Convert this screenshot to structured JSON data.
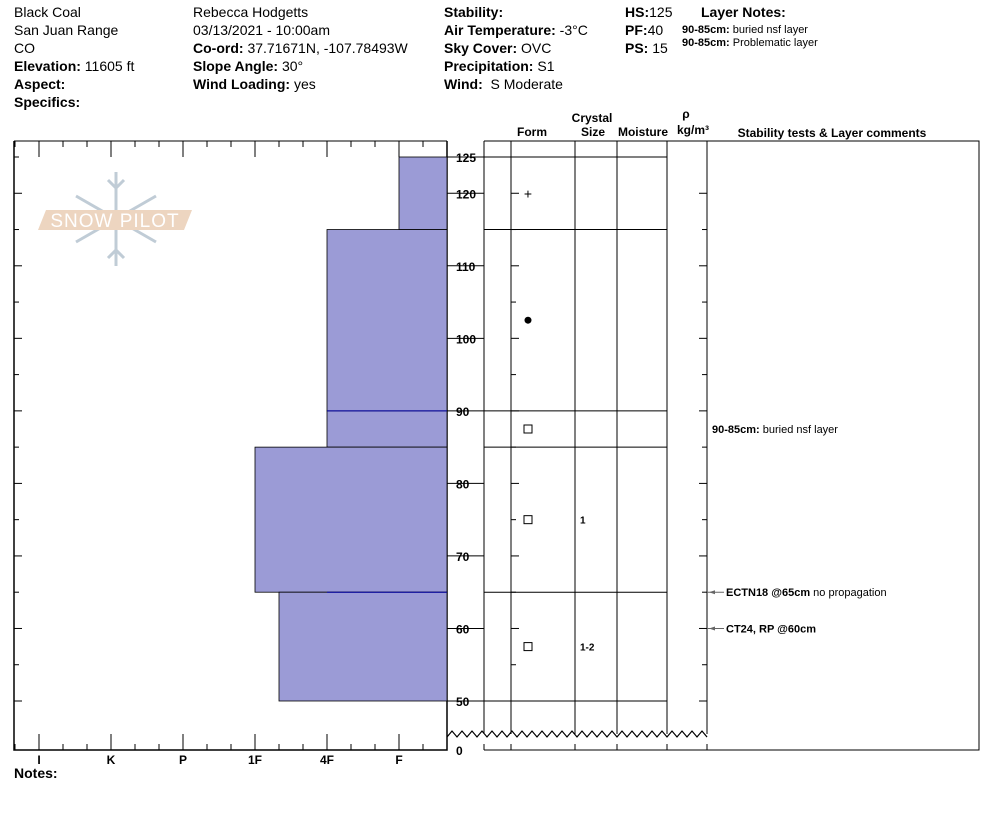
{
  "header": {
    "location": "Black Coal",
    "range": "San Juan Range",
    "state": "CO",
    "elevation_label": "Elevation:",
    "elevation": "11605 ft",
    "aspect_label": "Aspect:",
    "aspect": "",
    "specifics_label": "Specifics:",
    "observer": "Rebecca Hodgetts",
    "datetime": "03/13/2021 - 10:00am",
    "coord_label": "Co-ord:",
    "coord": "37.71671N, -107.78493W",
    "slope_label": "Slope Angle:",
    "slope": "30°",
    "wind_loading_label": "Wind Loading:",
    "wind_loading": "yes",
    "stability_label": "Stability:",
    "stability": "",
    "air_temp_label": "Air Temperature:",
    "air_temp": "-3°C",
    "sky_label": "Sky Cover:",
    "sky": "OVC",
    "precip_label": "Precipitation:",
    "precip": "S1",
    "wind_label": "Wind:",
    "wind": "S Moderate",
    "hs_label": "HS:",
    "hs": "125",
    "pf_label": "PF:",
    "pf": "40",
    "ps_label": "PS:",
    "ps": "15",
    "layer_notes_label": "Layer Notes:",
    "layer_notes": [
      {
        "range": "90-85cm:",
        "text": "buried nsf layer"
      },
      {
        "range": "90-85cm:",
        "text": "Problematic layer"
      }
    ]
  },
  "logo_text": "SNOW PILOT",
  "notes_label": "Notes:",
  "columns": {
    "crystal": "Crystal",
    "form": "Form",
    "size": "Size",
    "moisture": "Moisture",
    "rho": "ρ",
    "density_unit": "kg/m³",
    "comments": "Stability tests & Layer comments"
  },
  "colors": {
    "layer_fill": "#9b9bd6",
    "layer_stroke": "#0000a0",
    "logo_band": "#edd5c0",
    "logo_flake": "#c0ccd6"
  },
  "chart_data": {
    "type": "snow-profile",
    "depth_axis": {
      "unit": "cm",
      "ticks": [
        125,
        120,
        110,
        100,
        90,
        80,
        70,
        60,
        50,
        0
      ],
      "break_between": [
        0,
        50
      ]
    },
    "hardness_axis": {
      "ticks": [
        "I",
        "K",
        "P",
        "1F",
        "4F",
        "F"
      ]
    },
    "layers": [
      {
        "top": 125,
        "bottom": 115,
        "hardness": "F",
        "form": "+",
        "form_icon": "precipitation-particles",
        "size": ""
      },
      {
        "top": 115,
        "bottom": 90,
        "hardness": "4F",
        "form": "●",
        "form_icon": "rounded-grains",
        "size": ""
      },
      {
        "top": 90,
        "bottom": 85,
        "hardness": "4F",
        "form": "□",
        "form_icon": "faceted-crystals",
        "size": ""
      },
      {
        "top": 85,
        "bottom": 65,
        "hardness": "1F",
        "form": "□",
        "form_icon": "faceted-crystals",
        "size": "1"
      },
      {
        "top": 65,
        "bottom": 50,
        "hardness": "1F+",
        "form": "□",
        "form_icon": "faceted-crystals",
        "size": "1-2"
      }
    ],
    "comments": [
      {
        "depth": 87.5,
        "bold": "90-85cm:",
        "text": "buried nsf layer",
        "arrow": false
      },
      {
        "depth": 65,
        "bold": "ECTN18 @65cm",
        "text": "no propagation",
        "arrow": true
      },
      {
        "depth": 60,
        "bold": "CT24, RP @60cm",
        "text": "",
        "arrow": true
      }
    ]
  }
}
